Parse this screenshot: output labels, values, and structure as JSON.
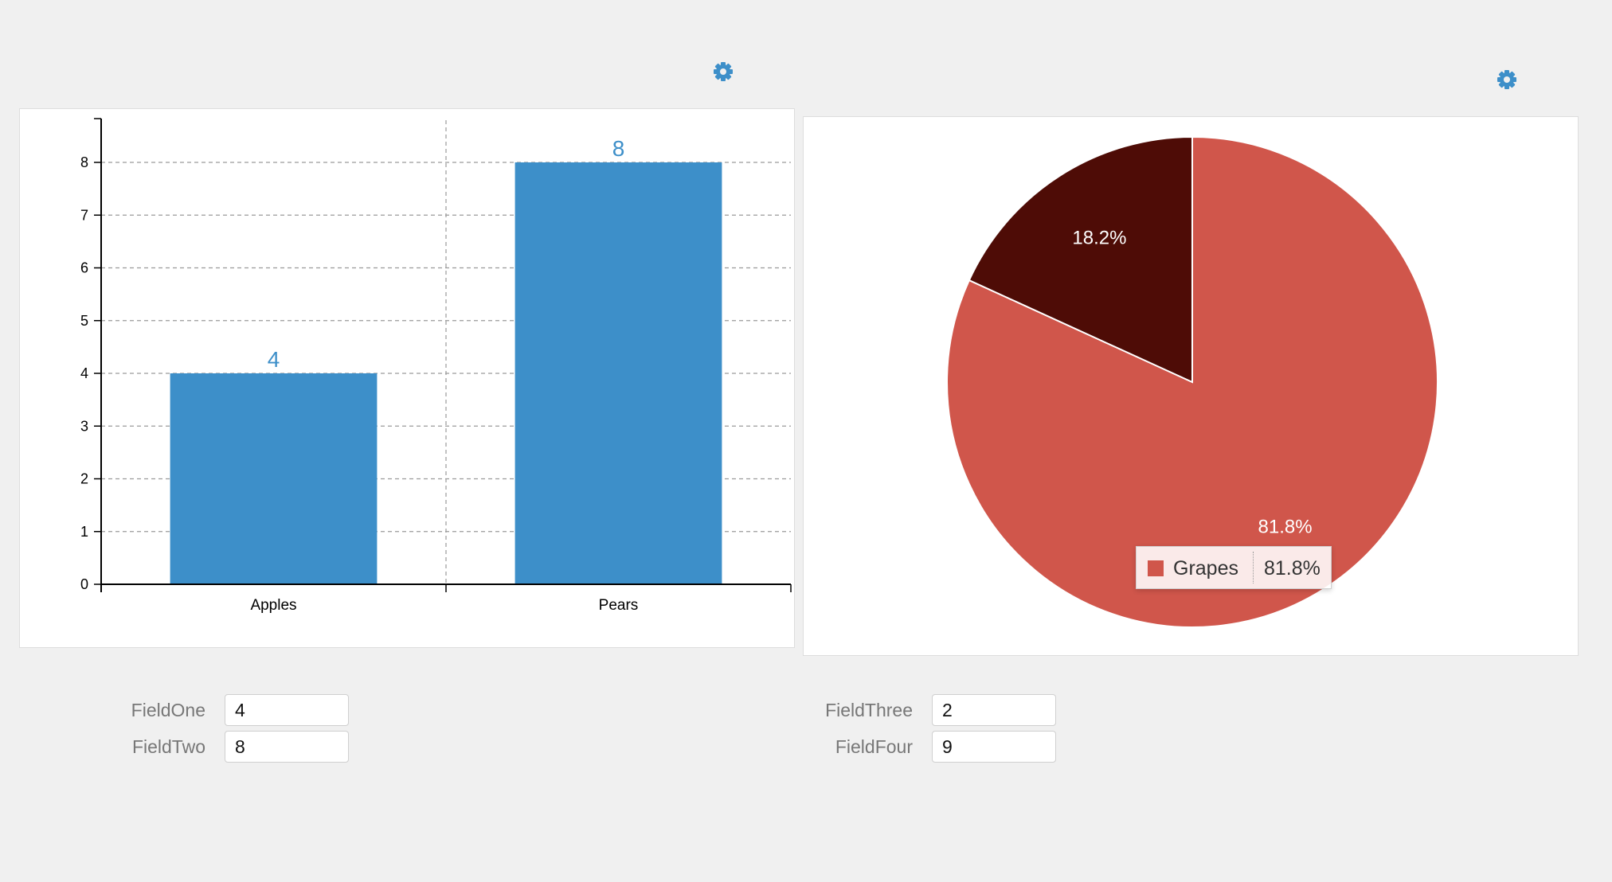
{
  "bar_chart": {
    "settings_icon": "gear-icon",
    "accent_color": "#3d8fc9"
  },
  "pie_chart": {
    "settings_icon": "gear-icon",
    "tooltip": {
      "name": "Grapes",
      "value": "81.8%"
    }
  },
  "fields": {
    "left": [
      {
        "label": "FieldOne",
        "value": "4"
      },
      {
        "label": "FieldTwo",
        "value": "8"
      }
    ],
    "right": [
      {
        "label": "FieldThree",
        "value": "2"
      },
      {
        "label": "FieldFour",
        "value": "9"
      }
    ]
  },
  "chart_data": [
    {
      "type": "bar",
      "categories": [
        "Apples",
        "Pears"
      ],
      "values": [
        4,
        8
      ],
      "data_labels": [
        "4",
        "8"
      ],
      "ylim": [
        0,
        8.8
      ],
      "yticks": [
        "0",
        "1",
        "2",
        "3",
        "4",
        "5",
        "6",
        "7",
        "8"
      ],
      "grid": true,
      "color": "#3d8fc9"
    },
    {
      "type": "pie",
      "slices": [
        {
          "name": "Grapes",
          "value": 9,
          "label": "81.8%",
          "color": "#d0564b"
        },
        {
          "name": "",
          "value": 2,
          "label": "18.2%",
          "color": "#4e0c06"
        }
      ]
    }
  ]
}
